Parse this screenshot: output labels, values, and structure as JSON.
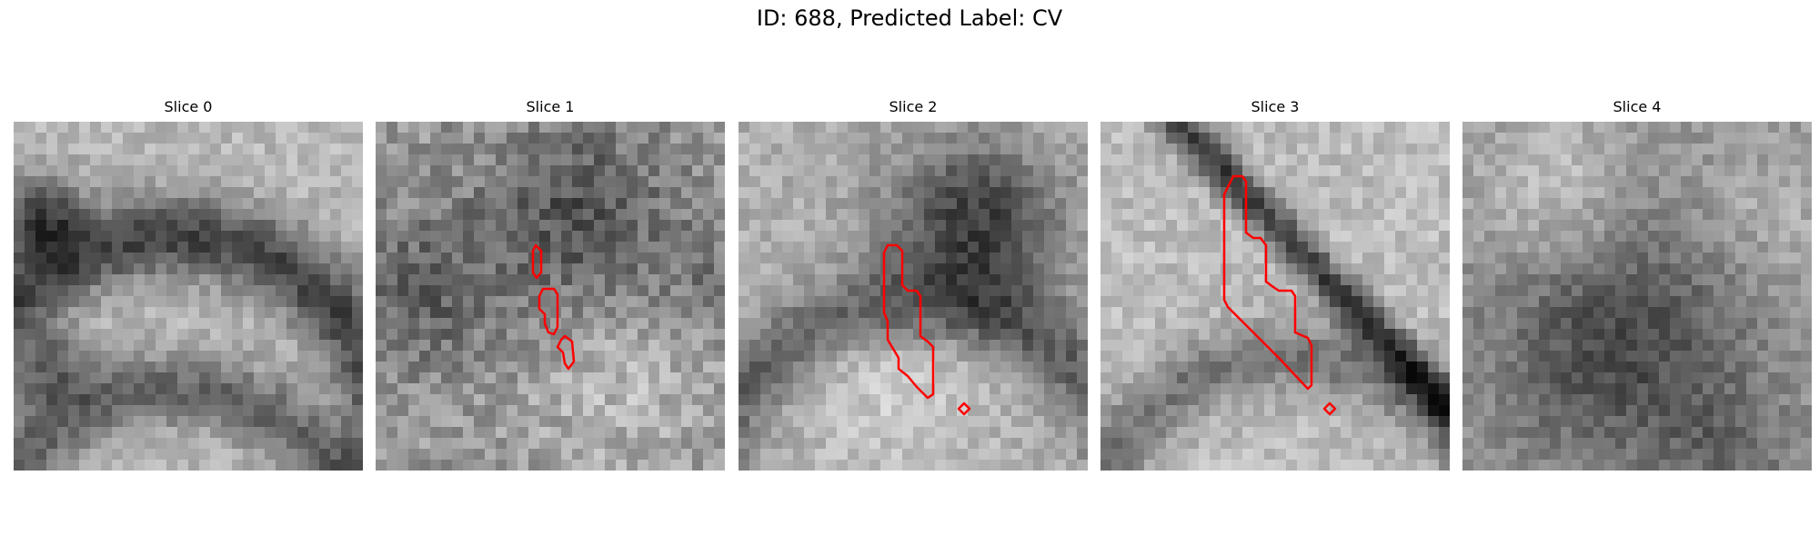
{
  "figure": {
    "title": "ID: 688, Predicted Label: CV"
  },
  "colors": {
    "contour": "#ff0000",
    "background": "#ffffff"
  },
  "panels": [
    {
      "title": "Slice 0",
      "has_contour": false
    },
    {
      "title": "Slice 1",
      "has_contour": true
    },
    {
      "title": "Slice 2",
      "has_contour": true
    },
    {
      "title": "Slice 3",
      "has_contour": true
    },
    {
      "title": "Slice 4",
      "has_contour": false
    }
  ]
}
